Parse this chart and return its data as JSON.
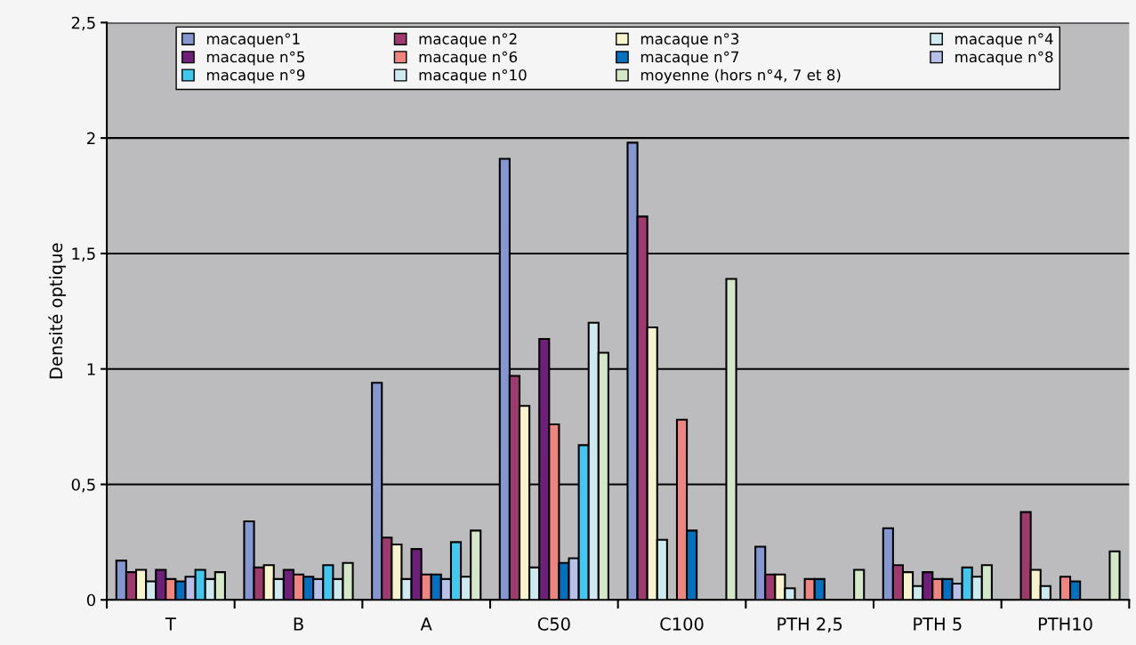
{
  "chart_data": {
    "type": "bar",
    "ylabel": "Densité optique",
    "categories": [
      "T",
      "B",
      "A",
      "C50",
      "C100",
      "PTH 2,5",
      "PTH 5",
      "PTH10"
    ],
    "series": [
      {
        "name": "macaquen°1",
        "color": "#8497d0",
        "values": [
          0.17,
          0.34,
          0.94,
          1.91,
          1.98,
          0.23,
          0.31,
          null
        ]
      },
      {
        "name": "macaque n°2",
        "color": "#9e3a6e",
        "values": [
          0.12,
          0.14,
          0.27,
          0.97,
          1.66,
          0.11,
          0.15,
          0.38
        ]
      },
      {
        "name": "macaque n°3",
        "color": "#f7f4cc",
        "values": [
          0.13,
          0.15,
          0.24,
          0.84,
          1.18,
          0.11,
          0.12,
          0.13
        ]
      },
      {
        "name": "macaque n°4",
        "color": "#cdeaf0",
        "values": [
          0.08,
          0.09,
          0.09,
          0.14,
          0.26,
          0.05,
          0.06,
          0.06
        ]
      },
      {
        "name": "macaque n°5",
        "color": "#6e1f7a",
        "values": [
          0.13,
          0.13,
          0.22,
          1.13,
          null,
          null,
          0.12,
          null
        ]
      },
      {
        "name": "macaque n°6",
        "color": "#f08580",
        "values": [
          0.09,
          0.11,
          0.11,
          0.76,
          0.78,
          0.09,
          0.09,
          0.1
        ]
      },
      {
        "name": "macaque n°7",
        "color": "#0070c0",
        "values": [
          0.08,
          0.1,
          0.11,
          0.16,
          0.3,
          0.09,
          0.09,
          0.08
        ]
      },
      {
        "name": "macaque n°8",
        "color": "#b8c0e8",
        "values": [
          0.1,
          0.09,
          0.09,
          0.18,
          null,
          null,
          0.07,
          null
        ]
      },
      {
        "name": "macaque n°9",
        "color": "#40c8f0",
        "values": [
          0.13,
          0.15,
          0.25,
          0.67,
          null,
          null,
          0.14,
          null
        ]
      },
      {
        "name": "macaque n°10",
        "color": "#cdeaf0",
        "values": [
          0.09,
          0.09,
          0.1,
          1.2,
          null,
          null,
          0.1,
          null
        ]
      },
      {
        "name": "moyenne (hors n°4, 7 et 8)",
        "color": "#d4e8c8",
        "values": [
          0.12,
          0.16,
          0.3,
          1.07,
          1.39,
          0.13,
          0.15,
          0.21
        ]
      }
    ],
    "ylim": [
      0,
      2.5
    ],
    "yticks": [
      0,
      {
        "value": 0.5,
        "label": "0,5"
      },
      1,
      {
        "value": 1.5,
        "label": "1,5"
      },
      2,
      {
        "value": 2.5,
        "label": "2,5"
      }
    ],
    "grid": "y",
    "legend": "top"
  }
}
